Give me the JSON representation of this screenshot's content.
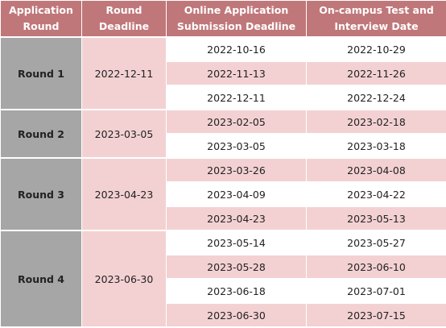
{
  "headers": [
    {
      "line1": "Application",
      "line2": "Round"
    },
    {
      "line1": "Round",
      "line2": "Deadline"
    },
    {
      "line1": "Online Application",
      "line2": "Submission Deadline"
    },
    {
      "line1": "On-campus Test and",
      "line2": "Interview Date"
    }
  ],
  "rounds": [
    {
      "name": "Round 1",
      "deadline": "2022-12-11",
      "rows": [
        {
          "submission": "2022-10-16",
          "interview": "2022-10-29"
        },
        {
          "submission": "2022-11-13",
          "interview": "2022-11-26"
        },
        {
          "submission": "2022-12-11",
          "interview": "2022-12-24"
        }
      ]
    },
    {
      "name": "Round 2",
      "deadline": "2023-03-05",
      "rows": [
        {
          "submission": "2023-02-05",
          "interview": "2023-02-18"
        },
        {
          "submission": "2023-03-05",
          "interview": "2023-03-18"
        }
      ]
    },
    {
      "name": "Round 3",
      "deadline": "2023-04-23",
      "rows": [
        {
          "submission": "2023-03-26",
          "interview": "2023-04-08"
        },
        {
          "submission": "2023-04-09",
          "interview": "2023-04-22"
        },
        {
          "submission": "2023-04-23",
          "interview": "2023-05-13"
        }
      ]
    },
    {
      "name": "Round 4",
      "deadline": "2023-06-30",
      "rows": [
        {
          "submission": "2023-05-14",
          "interview": "2023-05-27"
        },
        {
          "submission": "2023-05-28",
          "interview": "2023-06-10"
        },
        {
          "submission": "2023-06-18",
          "interview": "2023-07-01"
        },
        {
          "submission": "2023-06-30",
          "interview": "2023-07-15"
        }
      ]
    }
  ],
  "colors": {
    "header_bg": "#c0777a",
    "round_bg": "#a6a6a6",
    "pink_band": "#f3d1d2",
    "white_band": "#ffffff"
  }
}
